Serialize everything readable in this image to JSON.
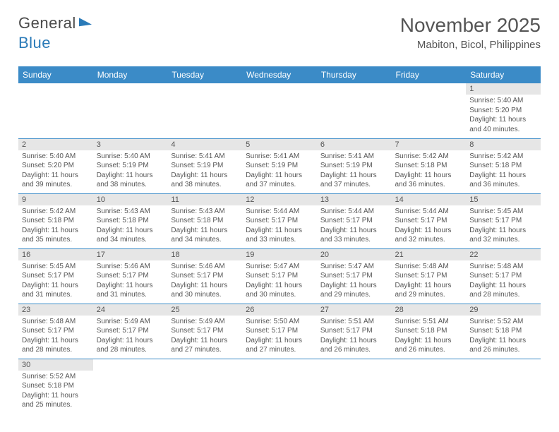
{
  "logo": {
    "part1": "General",
    "part2": "Blue"
  },
  "title": "November 2025",
  "location": "Mabiton, Bicol, Philippines",
  "colors": {
    "header_bg": "#3b8bc7",
    "header_text": "#ffffff",
    "daynum_bg": "#e6e6e6",
    "text": "#555555",
    "border": "#3b8bc7",
    "logo_blue": "#2a7ab8"
  },
  "fonts": {
    "title_size": 28,
    "location_size": 15,
    "header_size": 12,
    "daynum_size": 11,
    "info_size": 10
  },
  "weekdays": [
    "Sunday",
    "Monday",
    "Tuesday",
    "Wednesday",
    "Thursday",
    "Friday",
    "Saturday"
  ],
  "weeks": [
    [
      {
        "empty": true
      },
      {
        "empty": true
      },
      {
        "empty": true
      },
      {
        "empty": true
      },
      {
        "empty": true
      },
      {
        "empty": true
      },
      {
        "day": "1",
        "sunrise": "Sunrise: 5:40 AM",
        "sunset": "Sunset: 5:20 PM",
        "daylight1": "Daylight: 11 hours",
        "daylight2": "and 40 minutes."
      }
    ],
    [
      {
        "day": "2",
        "sunrise": "Sunrise: 5:40 AM",
        "sunset": "Sunset: 5:20 PM",
        "daylight1": "Daylight: 11 hours",
        "daylight2": "and 39 minutes."
      },
      {
        "day": "3",
        "sunrise": "Sunrise: 5:40 AM",
        "sunset": "Sunset: 5:19 PM",
        "daylight1": "Daylight: 11 hours",
        "daylight2": "and 38 minutes."
      },
      {
        "day": "4",
        "sunrise": "Sunrise: 5:41 AM",
        "sunset": "Sunset: 5:19 PM",
        "daylight1": "Daylight: 11 hours",
        "daylight2": "and 38 minutes."
      },
      {
        "day": "5",
        "sunrise": "Sunrise: 5:41 AM",
        "sunset": "Sunset: 5:19 PM",
        "daylight1": "Daylight: 11 hours",
        "daylight2": "and 37 minutes."
      },
      {
        "day": "6",
        "sunrise": "Sunrise: 5:41 AM",
        "sunset": "Sunset: 5:19 PM",
        "daylight1": "Daylight: 11 hours",
        "daylight2": "and 37 minutes."
      },
      {
        "day": "7",
        "sunrise": "Sunrise: 5:42 AM",
        "sunset": "Sunset: 5:18 PM",
        "daylight1": "Daylight: 11 hours",
        "daylight2": "and 36 minutes."
      },
      {
        "day": "8",
        "sunrise": "Sunrise: 5:42 AM",
        "sunset": "Sunset: 5:18 PM",
        "daylight1": "Daylight: 11 hours",
        "daylight2": "and 36 minutes."
      }
    ],
    [
      {
        "day": "9",
        "sunrise": "Sunrise: 5:42 AM",
        "sunset": "Sunset: 5:18 PM",
        "daylight1": "Daylight: 11 hours",
        "daylight2": "and 35 minutes."
      },
      {
        "day": "10",
        "sunrise": "Sunrise: 5:43 AM",
        "sunset": "Sunset: 5:18 PM",
        "daylight1": "Daylight: 11 hours",
        "daylight2": "and 34 minutes."
      },
      {
        "day": "11",
        "sunrise": "Sunrise: 5:43 AM",
        "sunset": "Sunset: 5:18 PM",
        "daylight1": "Daylight: 11 hours",
        "daylight2": "and 34 minutes."
      },
      {
        "day": "12",
        "sunrise": "Sunrise: 5:44 AM",
        "sunset": "Sunset: 5:17 PM",
        "daylight1": "Daylight: 11 hours",
        "daylight2": "and 33 minutes."
      },
      {
        "day": "13",
        "sunrise": "Sunrise: 5:44 AM",
        "sunset": "Sunset: 5:17 PM",
        "daylight1": "Daylight: 11 hours",
        "daylight2": "and 33 minutes."
      },
      {
        "day": "14",
        "sunrise": "Sunrise: 5:44 AM",
        "sunset": "Sunset: 5:17 PM",
        "daylight1": "Daylight: 11 hours",
        "daylight2": "and 32 minutes."
      },
      {
        "day": "15",
        "sunrise": "Sunrise: 5:45 AM",
        "sunset": "Sunset: 5:17 PM",
        "daylight1": "Daylight: 11 hours",
        "daylight2": "and 32 minutes."
      }
    ],
    [
      {
        "day": "16",
        "sunrise": "Sunrise: 5:45 AM",
        "sunset": "Sunset: 5:17 PM",
        "daylight1": "Daylight: 11 hours",
        "daylight2": "and 31 minutes."
      },
      {
        "day": "17",
        "sunrise": "Sunrise: 5:46 AM",
        "sunset": "Sunset: 5:17 PM",
        "daylight1": "Daylight: 11 hours",
        "daylight2": "and 31 minutes."
      },
      {
        "day": "18",
        "sunrise": "Sunrise: 5:46 AM",
        "sunset": "Sunset: 5:17 PM",
        "daylight1": "Daylight: 11 hours",
        "daylight2": "and 30 minutes."
      },
      {
        "day": "19",
        "sunrise": "Sunrise: 5:47 AM",
        "sunset": "Sunset: 5:17 PM",
        "daylight1": "Daylight: 11 hours",
        "daylight2": "and 30 minutes."
      },
      {
        "day": "20",
        "sunrise": "Sunrise: 5:47 AM",
        "sunset": "Sunset: 5:17 PM",
        "daylight1": "Daylight: 11 hours",
        "daylight2": "and 29 minutes."
      },
      {
        "day": "21",
        "sunrise": "Sunrise: 5:48 AM",
        "sunset": "Sunset: 5:17 PM",
        "daylight1": "Daylight: 11 hours",
        "daylight2": "and 29 minutes."
      },
      {
        "day": "22",
        "sunrise": "Sunrise: 5:48 AM",
        "sunset": "Sunset: 5:17 PM",
        "daylight1": "Daylight: 11 hours",
        "daylight2": "and 28 minutes."
      }
    ],
    [
      {
        "day": "23",
        "sunrise": "Sunrise: 5:48 AM",
        "sunset": "Sunset: 5:17 PM",
        "daylight1": "Daylight: 11 hours",
        "daylight2": "and 28 minutes."
      },
      {
        "day": "24",
        "sunrise": "Sunrise: 5:49 AM",
        "sunset": "Sunset: 5:17 PM",
        "daylight1": "Daylight: 11 hours",
        "daylight2": "and 28 minutes."
      },
      {
        "day": "25",
        "sunrise": "Sunrise: 5:49 AM",
        "sunset": "Sunset: 5:17 PM",
        "daylight1": "Daylight: 11 hours",
        "daylight2": "and 27 minutes."
      },
      {
        "day": "26",
        "sunrise": "Sunrise: 5:50 AM",
        "sunset": "Sunset: 5:17 PM",
        "daylight1": "Daylight: 11 hours",
        "daylight2": "and 27 minutes."
      },
      {
        "day": "27",
        "sunrise": "Sunrise: 5:51 AM",
        "sunset": "Sunset: 5:17 PM",
        "daylight1": "Daylight: 11 hours",
        "daylight2": "and 26 minutes."
      },
      {
        "day": "28",
        "sunrise": "Sunrise: 5:51 AM",
        "sunset": "Sunset: 5:18 PM",
        "daylight1": "Daylight: 11 hours",
        "daylight2": "and 26 minutes."
      },
      {
        "day": "29",
        "sunrise": "Sunrise: 5:52 AM",
        "sunset": "Sunset: 5:18 PM",
        "daylight1": "Daylight: 11 hours",
        "daylight2": "and 26 minutes."
      }
    ],
    [
      {
        "day": "30",
        "sunrise": "Sunrise: 5:52 AM",
        "sunset": "Sunset: 5:18 PM",
        "daylight1": "Daylight: 11 hours",
        "daylight2": "and 25 minutes."
      },
      {
        "empty": true
      },
      {
        "empty": true
      },
      {
        "empty": true
      },
      {
        "empty": true
      },
      {
        "empty": true
      },
      {
        "empty": true
      }
    ]
  ]
}
